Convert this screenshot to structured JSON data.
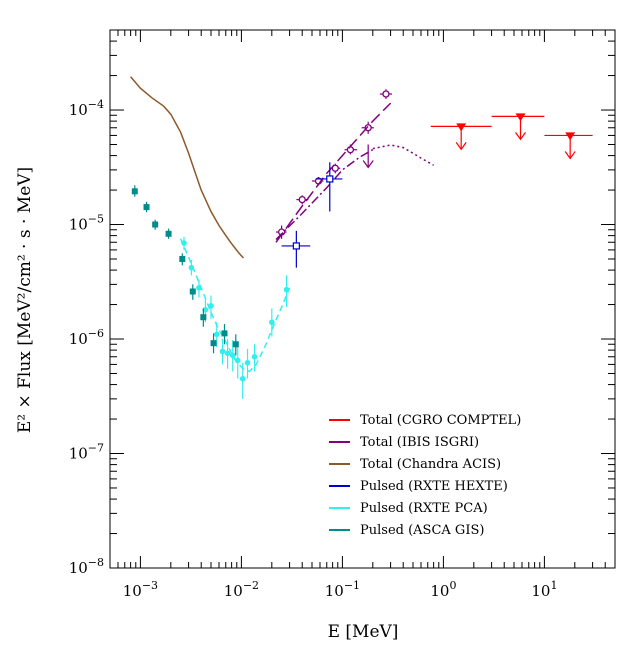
{
  "chart_data": {
    "type": "scatter",
    "xlabel": {
      "pre": "E ",
      "post": "[MeV]"
    },
    "ylabel": {
      "main": "E² × Flux [MeV²/cm² · s · MeV]"
    },
    "xscale": "log",
    "yscale": "log",
    "xlim": [
      0.0005,
      50
    ],
    "ylim": [
      1e-08,
      0.0005
    ],
    "grid": false,
    "legend_position": "lower-right",
    "x_ticks": [
      {
        "value": 0.001,
        "base": "10",
        "exp": "−3"
      },
      {
        "value": 0.01,
        "base": "10",
        "exp": "−2"
      },
      {
        "value": 0.1,
        "base": "10",
        "exp": "−1"
      },
      {
        "value": 1,
        "base": "10",
        "exp": "0"
      },
      {
        "value": 10,
        "base": "10",
        "exp": "1"
      }
    ],
    "y_ticks": [
      {
        "value": 1e-08,
        "base": "10",
        "exp": "−8"
      },
      {
        "value": 1e-07,
        "base": "10",
        "exp": "−7"
      },
      {
        "value": 1e-06,
        "base": "10",
        "exp": "−6"
      },
      {
        "value": 1e-05,
        "base": "10",
        "exp": "−5"
      },
      {
        "value": 0.0001,
        "base": "10",
        "exp": "−4"
      }
    ],
    "series": [
      {
        "name": "Total (CGRO COMPTEL)",
        "color": "#ff0000",
        "kind": "upper_limits",
        "points": [
          {
            "x": 1.5,
            "xlo": 0.75,
            "xhi": 3.0,
            "y": 7.2e-05
          },
          {
            "x": 5.8,
            "xlo": 3.0,
            "xhi": 10.0,
            "y": 8.8e-05
          },
          {
            "x": 18.0,
            "xlo": 10.0,
            "xhi": 30.0,
            "y": 6e-05
          }
        ]
      },
      {
        "name": "Total (IBIS ISGRI)",
        "color": "#800080",
        "kind": "points",
        "points": [
          {
            "x": 0.025,
            "y": 8.6e-06,
            "xlo": 0.022,
            "xhi": 0.028,
            "ylo": 7.5e-06,
            "yhi": 9.8e-06
          },
          {
            "x": 0.04,
            "y": 1.65e-05,
            "xlo": 0.035,
            "xhi": 0.046,
            "ylo": 1.5e-05,
            "yhi": 1.8e-05
          },
          {
            "x": 0.058,
            "y": 2.4e-05,
            "xlo": 0.05,
            "xhi": 0.065,
            "ylo": 2.2e-05,
            "yhi": 2.6e-05
          },
          {
            "x": 0.085,
            "y": 3.1e-05,
            "xlo": 0.075,
            "xhi": 0.095,
            "ylo": 2.8e-05,
            "yhi": 3.4e-05
          },
          {
            "x": 0.12,
            "y": 4.5e-05,
            "xlo": 0.105,
            "xhi": 0.14,
            "ylo": 4.1e-05,
            "yhi": 5e-05
          },
          {
            "x": 0.18,
            "y": 7e-05,
            "xlo": 0.155,
            "xhi": 0.205,
            "ylo": 6.2e-05,
            "yhi": 7.9e-05
          },
          {
            "x": 0.27,
            "y": 0.000138,
            "xlo": 0.235,
            "xhi": 0.31,
            "ylo": 0.000125,
            "yhi": 0.000152
          }
        ]
      },
      {
        "name": "Total (IBIS ISGRI)",
        "color": "#800080",
        "kind": "upper_limits",
        "points": [
          {
            "x": 0.18,
            "y": 5e-05
          }
        ]
      },
      {
        "name": "Total (IBIS ISGRI)",
        "color": "#800080",
        "kind": "line",
        "style": "longdash",
        "points": [
          {
            "x": 0.022,
            "y": 7e-06
          },
          {
            "x": 0.04,
            "y": 1.45e-05
          },
          {
            "x": 0.07,
            "y": 2.8e-05
          },
          {
            "x": 0.1,
            "y": 4e-05
          },
          {
            "x": 0.15,
            "y": 6e-05
          },
          {
            "x": 0.2,
            "y": 8e-05
          },
          {
            "x": 0.3,
            "y": 0.000115
          }
        ]
      },
      {
        "name": "Total (IBIS ISGRI)",
        "color": "#800080",
        "kind": "line",
        "style": "dashdot",
        "points": [
          {
            "x": 0.022,
            "y": 7.4e-06
          },
          {
            "x": 0.04,
            "y": 1.25e-05
          },
          {
            "x": 0.07,
            "y": 2.1e-05
          },
          {
            "x": 0.1,
            "y": 3e-05
          },
          {
            "x": 0.15,
            "y": 3.9e-05
          },
          {
            "x": 0.2,
            "y": 4.5e-05
          }
        ]
      },
      {
        "name": "Total (IBIS ISGRI)",
        "color": "#800080",
        "kind": "line",
        "style": "dotted",
        "points": [
          {
            "x": 0.2,
            "y": 4.6e-05
          },
          {
            "x": 0.3,
            "y": 4.95e-05
          },
          {
            "x": 0.4,
            "y": 4.7e-05
          },
          {
            "x": 0.5,
            "y": 4.2e-05
          },
          {
            "x": 0.6,
            "y": 3.8e-05
          },
          {
            "x": 0.8,
            "y": 3.3e-05
          }
        ]
      },
      {
        "name": "Total (Chandra ACIS)",
        "color": "#8b5a2b",
        "kind": "line",
        "style": "solid",
        "points": [
          {
            "x": 0.0008,
            "y": 0.000195
          },
          {
            "x": 0.001,
            "y": 0.000155
          },
          {
            "x": 0.0013,
            "y": 0.000128
          },
          {
            "x": 0.0017,
            "y": 0.000108
          },
          {
            "x": 0.002,
            "y": 9.2e-05
          },
          {
            "x": 0.0025,
            "y": 6.4e-05
          },
          {
            "x": 0.003,
            "y": 4.2e-05
          },
          {
            "x": 0.0035,
            "y": 2.8e-05
          },
          {
            "x": 0.004,
            "y": 2e-05
          },
          {
            "x": 0.005,
            "y": 1.3e-05
          },
          {
            "x": 0.006,
            "y": 9.8e-06
          },
          {
            "x": 0.007,
            "y": 8e-06
          },
          {
            "x": 0.008,
            "y": 6.8e-06
          },
          {
            "x": 0.0095,
            "y": 5.6e-06
          },
          {
            "x": 0.0105,
            "y": 5.1e-06
          }
        ]
      },
      {
        "name": "Pulsed (RXTE HEXTE)",
        "color": "#0000cc",
        "kind": "points_open_square",
        "points": [
          {
            "x": 0.035,
            "y": 6.5e-06,
            "xlo": 0.025,
            "xhi": 0.048,
            "ylo": 4.2e-06,
            "yhi": 8.8e-06
          },
          {
            "x": 0.075,
            "y": 2.5e-05,
            "xlo": 0.055,
            "xhi": 0.1,
            "ylo": 1.3e-05,
            "yhi": 3.5e-05
          }
        ]
      },
      {
        "name": "Pulsed (RXTE PCA)",
        "color": "#33eeee",
        "kind": "points",
        "points": [
          {
            "x": 0.0027,
            "y": 6.9e-06,
            "ylo": 6e-06,
            "yhi": 7.8e-06
          },
          {
            "x": 0.0032,
            "y": 4.2e-06,
            "ylo": 3.6e-06,
            "yhi": 4.9e-06
          },
          {
            "x": 0.0038,
            "y": 2.8e-06,
            "ylo": 2.3e-06,
            "yhi": 3.3e-06
          },
          {
            "x": 0.0044,
            "y": 1.8e-06,
            "ylo": 1.4e-06,
            "yhi": 2.2e-06
          },
          {
            "x": 0.005,
            "y": 1.95e-06,
            "ylo": 1.5e-06,
            "yhi": 2.4e-06
          },
          {
            "x": 0.0057,
            "y": 1.1e-06,
            "ylo": 8.5e-07,
            "yhi": 1.4e-06
          },
          {
            "x": 0.0065,
            "y": 7.8e-07,
            "ylo": 6e-07,
            "yhi": 1e-06
          },
          {
            "x": 0.0073,
            "y": 7.5e-07,
            "ylo": 5.5e-07,
            "yhi": 1e-06
          },
          {
            "x": 0.0082,
            "y": 7.2e-07,
            "ylo": 5.2e-07,
            "yhi": 9.8e-07
          },
          {
            "x": 0.0092,
            "y": 6.5e-07,
            "ylo": 4.5e-07,
            "yhi": 9e-07
          },
          {
            "x": 0.0103,
            "y": 4.5e-07,
            "ylo": 3e-07,
            "yhi": 6.2e-07
          },
          {
            "x": 0.0115,
            "y": 6.2e-07,
            "ylo": 4.5e-07,
            "yhi": 8.2e-07
          },
          {
            "x": 0.0135,
            "y": 7e-07,
            "ylo": 5.2e-07,
            "yhi": 9e-07
          },
          {
            "x": 0.02,
            "y": 1.4e-06,
            "ylo": 1.05e-06,
            "yhi": 1.85e-06
          },
          {
            "x": 0.028,
            "y": 2.7e-06,
            "ylo": 1.9e-06,
            "yhi": 3.6e-06
          }
        ]
      },
      {
        "name": "Pulsed (RXTE PCA)",
        "color": "#33eeee",
        "kind": "line",
        "style": "dashed",
        "points": [
          {
            "x": 0.0025,
            "y": 7.5e-06
          },
          {
            "x": 0.003,
            "y": 5.2e-06
          },
          {
            "x": 0.004,
            "y": 2.8e-06
          },
          {
            "x": 0.005,
            "y": 1.7e-06
          },
          {
            "x": 0.006,
            "y": 1.2e-06
          },
          {
            "x": 0.007,
            "y": 9.5e-07
          },
          {
            "x": 0.008,
            "y": 7.5e-07
          },
          {
            "x": 0.009,
            "y": 6.2e-07
          },
          {
            "x": 0.0105,
            "y": 5.5e-07
          },
          {
            "x": 0.012,
            "y": 5.2e-07
          },
          {
            "x": 0.014,
            "y": 6e-07
          },
          {
            "x": 0.017,
            "y": 8.5e-07
          },
          {
            "x": 0.02,
            "y": 1.2e-06
          },
          {
            "x": 0.025,
            "y": 1.9e-06
          },
          {
            "x": 0.03,
            "y": 2.8e-06
          }
        ]
      },
      {
        "name": "Pulsed (ASCA GIS)",
        "color": "#008b8b",
        "kind": "points",
        "points": [
          {
            "x": 0.00088,
            "y": 1.95e-05,
            "ylo": 1.75e-05,
            "yhi": 2.2e-05
          },
          {
            "x": 0.00115,
            "y": 1.42e-05,
            "ylo": 1.28e-05,
            "yhi": 1.58e-05
          },
          {
            "x": 0.0014,
            "y": 1e-05,
            "ylo": 9e-06,
            "yhi": 1.1e-05
          },
          {
            "x": 0.0019,
            "y": 8.3e-06,
            "ylo": 7.5e-06,
            "yhi": 9.2e-06
          },
          {
            "x": 0.0026,
            "y": 5e-06,
            "ylo": 4.4e-06,
            "yhi": 5.6e-06
          },
          {
            "x": 0.0033,
            "y": 2.6e-06,
            "ylo": 2.2e-06,
            "yhi": 3e-06
          },
          {
            "x": 0.0042,
            "y": 1.55e-06,
            "ylo": 1.28e-06,
            "yhi": 1.85e-06
          },
          {
            "x": 0.0053,
            "y": 9.2e-07,
            "ylo": 7.5e-07,
            "yhi": 1.12e-06
          },
          {
            "x": 0.0068,
            "y": 1.12e-06,
            "ylo": 9e-07,
            "yhi": 1.35e-06
          },
          {
            "x": 0.0088,
            "y": 9e-07,
            "ylo": 7.2e-07,
            "yhi": 1.1e-06
          }
        ]
      }
    ],
    "legend": [
      {
        "label": "Total (CGRO COMPTEL)",
        "color": "#ff0000"
      },
      {
        "label": "Total (IBIS ISGRI)",
        "color": "#800080"
      },
      {
        "label": "Total (Chandra ACIS)",
        "color": "#8b5a2b"
      },
      {
        "label": "Pulsed (RXTE HEXTE)",
        "color": "#0000cc"
      },
      {
        "label": "Pulsed (RXTE PCA)",
        "color": "#33eeee"
      },
      {
        "label": "Pulsed (ASCA GIS)",
        "color": "#008b8b"
      }
    ]
  }
}
